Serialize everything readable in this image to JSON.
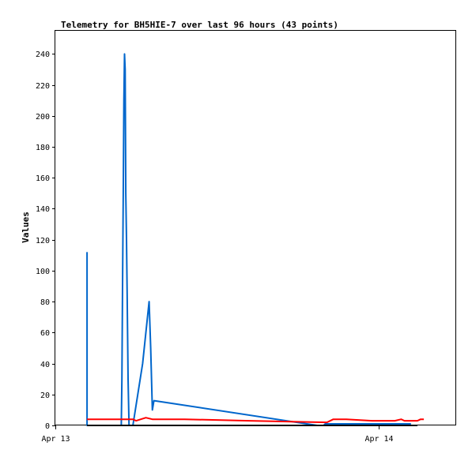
{
  "chart_data": {
    "type": "line",
    "title": "Telemetry for BH5HIE-7 over last 96 hours (43 points)",
    "xlabel": "",
    "ylabel": "Values",
    "xlim": [
      0,
      1.24
    ],
    "ylim": [
      0,
      255
    ],
    "x_ticks": [
      {
        "value": 0,
        "label": "Apr 13"
      },
      {
        "value": 1,
        "label": "Apr 14"
      }
    ],
    "y_ticks": [
      0,
      20,
      40,
      60,
      80,
      100,
      120,
      140,
      160,
      180,
      200,
      220,
      240
    ],
    "grid": false,
    "legend": "none",
    "series": [
      {
        "color": "#0066cc",
        "points": [
          [
            0.098,
            112
          ],
          [
            0.098,
            0
          ],
          [
            0.204,
            0
          ],
          [
            0.206,
            30
          ],
          [
            0.208,
            90
          ],
          [
            0.21,
            150
          ],
          [
            0.212,
            210
          ],
          [
            0.214,
            240
          ],
          [
            0.216,
            230
          ],
          [
            0.218,
            150
          ],
          [
            0.22,
            120
          ],
          [
            0.222,
            86
          ],
          [
            0.225,
            30
          ],
          [
            0.228,
            0
          ],
          [
            0.24,
            0
          ],
          [
            0.27,
            40
          ],
          [
            0.29,
            80
          ],
          [
            0.295,
            50
          ],
          [
            0.3,
            10
          ],
          [
            0.305,
            16
          ],
          [
            0.81,
            0
          ],
          [
            0.83,
            0
          ],
          [
            0.835,
            1
          ],
          [
            1.0,
            1
          ],
          [
            1.1,
            1
          ]
        ]
      },
      {
        "color": "#ff0000",
        "points": [
          [
            0.098,
            4
          ],
          [
            0.22,
            4
          ],
          [
            0.24,
            4
          ],
          [
            0.25,
            3
          ],
          [
            0.28,
            5
          ],
          [
            0.3,
            4
          ],
          [
            0.4,
            4
          ],
          [
            0.6,
            3
          ],
          [
            0.84,
            2
          ],
          [
            0.86,
            4
          ],
          [
            0.9,
            4
          ],
          [
            0.98,
            3
          ],
          [
            1.05,
            3
          ],
          [
            1.07,
            4
          ],
          [
            1.08,
            3
          ],
          [
            1.12,
            3
          ],
          [
            1.13,
            4
          ],
          [
            1.14,
            4
          ]
        ]
      },
      {
        "color": "#000000",
        "points": [
          [
            0.098,
            0
          ],
          [
            1.12,
            0
          ]
        ]
      }
    ]
  }
}
